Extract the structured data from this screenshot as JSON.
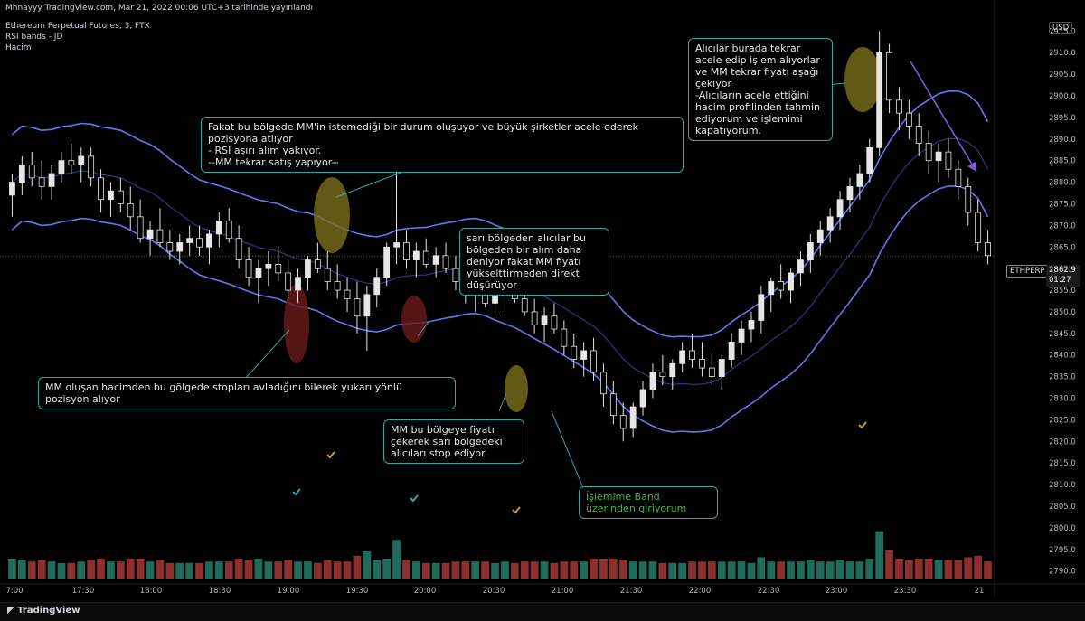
{
  "header": {
    "publish_line": "Mhnayyy TradingView.com, Mar 21, 2022 00:06 UTC+3 tarihinde yayınlandı",
    "symbol_line": "Ethereum Perpetual Futures, 3, FTX",
    "indicator_1": "RSI bands - JD",
    "indicator_2": "Hacim"
  },
  "currency_badge": "USD",
  "price_tag": {
    "symbol": "ETHPERP",
    "price": "2862.9",
    "countdown": "01:27"
  },
  "footer": {
    "logo_text": "TradingView"
  },
  "annotations": [
    {
      "id": "note-top-center",
      "text": "Fakat bu bölgede MM'in istemediği bir durum oluşuyor ve büyük şirketler acele ederek pozisyona atlıyor\n- RSI aşırı alım yakıyor.\n--MM tekrar satış yapıyor--"
    },
    {
      "id": "note-mid",
      "text": "sarı bölgeden alıcılar bu bölgeden bir alım daha deniyor fakat MM fiyatı yükselttirmeden direkt düşürüyor"
    },
    {
      "id": "note-left-bottom",
      "text": "MM oluşan hacimden bu gölgede stopları avladığını bilerek yukarı yönlü pozisyon alıyor"
    },
    {
      "id": "note-stop",
      "text": "MM bu bölgeye fiyatı çekerek sarı bölgedeki alıcıları stop ediyor"
    },
    {
      "id": "note-band",
      "text": "İşlemime Band üzerinden giriyorum"
    },
    {
      "id": "note-top-right",
      "text": "Alıcılar burada tekrar acele edip işlem alıyorlar ve MM tekrar fiyatı aşağı çekiyor\n-Alıcıların acele ettiğini hacim profilinden tahmin ediyorum ve işlemimi kapatıyorum."
    }
  ],
  "colors": {
    "background": "#000000",
    "candle": "#e6e6e6",
    "band": "#5b7cf0",
    "mid_band": "#2a3a7a",
    "vol_up": "#1f6b5c",
    "vol_down": "#8e2f2f",
    "highlight_yellow": "#7a6f1c",
    "highlight_red": "#6b1a1a",
    "note_border": "#2fa7a7",
    "price_line": "#c0392b",
    "arrow_purple": "#7b5cd6"
  },
  "chart_data": {
    "type": "candlestick",
    "instrument": "Ethereum Perpetual Futures",
    "timeframe": "3",
    "exchange": "FTX",
    "x_tick_labels": [
      "7:00",
      "17:30",
      "18:00",
      "18:30",
      "19:00",
      "19:30",
      "20:00",
      "20:30",
      "21:00",
      "21:30",
      "22:00",
      "22:30",
      "23:00",
      "23:30",
      "21"
    ],
    "y_tick_labels": [
      2790,
      2795,
      2800,
      2805,
      2810,
      2815,
      2820,
      2825,
      2830,
      2835,
      2840,
      2845,
      2850,
      2855,
      2860,
      2865,
      2870,
      2875,
      2880,
      2885,
      2890,
      2895,
      2900,
      2905,
      2910,
      2915
    ],
    "ylim": [
      2787,
      2918
    ],
    "last_price": 2862.9,
    "candles_ohlc": [
      [
        2877,
        2882,
        2872,
        2880
      ],
      [
        2880,
        2886,
        2877,
        2884
      ],
      [
        2884,
        2887,
        2879,
        2881
      ],
      [
        2881,
        2885,
        2876,
        2879
      ],
      [
        2879,
        2884,
        2876,
        2882
      ],
      [
        2882,
        2887,
        2880,
        2885
      ],
      [
        2885,
        2889,
        2882,
        2884
      ],
      [
        2884,
        2888,
        2880,
        2886
      ],
      [
        2886,
        2888,
        2879,
        2881
      ],
      [
        2881,
        2883,
        2873,
        2876
      ],
      [
        2876,
        2880,
        2872,
        2878
      ],
      [
        2878,
        2881,
        2873,
        2875
      ],
      [
        2875,
        2879,
        2869,
        2872
      ],
      [
        2872,
        2876,
        2866,
        2867
      ],
      [
        2867,
        2871,
        2863,
        2869
      ],
      [
        2869,
        2874,
        2865,
        2866
      ],
      [
        2866,
        2869,
        2862,
        2864
      ],
      [
        2864,
        2868,
        2861,
        2866
      ],
      [
        2866,
        2870,
        2863,
        2867
      ],
      [
        2867,
        2870,
        2863,
        2865
      ],
      [
        2865,
        2869,
        2861,
        2868
      ],
      [
        2868,
        2873,
        2865,
        2871
      ],
      [
        2871,
        2874,
        2866,
        2867
      ],
      [
        2867,
        2870,
        2860,
        2862
      ],
      [
        2862,
        2865,
        2856,
        2858
      ],
      [
        2858,
        2862,
        2852,
        2860
      ],
      [
        2860,
        2864,
        2856,
        2861
      ],
      [
        2861,
        2865,
        2857,
        2859
      ],
      [
        2859,
        2862,
        2853,
        2855
      ],
      [
        2855,
        2860,
        2852,
        2858
      ],
      [
        2858,
        2863,
        2855,
        2862
      ],
      [
        2862,
        2866,
        2859,
        2860
      ],
      [
        2860,
        2864,
        2855,
        2857
      ],
      [
        2857,
        2861,
        2853,
        2855
      ],
      [
        2855,
        2858,
        2850,
        2853
      ],
      [
        2853,
        2857,
        2845,
        2849
      ],
      [
        2849,
        2856,
        2841,
        2854
      ],
      [
        2854,
        2860,
        2851,
        2858
      ],
      [
        2858,
        2866,
        2856,
        2865
      ],
      [
        2865,
        2884,
        2861,
        2866
      ],
      [
        2866,
        2869,
        2860,
        2862
      ],
      [
        2862,
        2866,
        2858,
        2864
      ],
      [
        2864,
        2867,
        2860,
        2861
      ],
      [
        2861,
        2865,
        2858,
        2863
      ],
      [
        2863,
        2866,
        2859,
        2860
      ],
      [
        2860,
        2863,
        2855,
        2857
      ],
      [
        2857,
        2860,
        2852,
        2855
      ],
      [
        2855,
        2858,
        2850,
        2856
      ],
      [
        2856,
        2859,
        2851,
        2852
      ],
      [
        2852,
        2856,
        2849,
        2854
      ],
      [
        2854,
        2858,
        2850,
        2856
      ],
      [
        2856,
        2859,
        2852,
        2853
      ],
      [
        2853,
        2857,
        2849,
        2850
      ],
      [
        2850,
        2853,
        2845,
        2847
      ],
      [
        2847,
        2851,
        2843,
        2849
      ],
      [
        2849,
        2852,
        2845,
        2846
      ],
      [
        2846,
        2848,
        2840,
        2842
      ],
      [
        2842,
        2845,
        2837,
        2839
      ],
      [
        2839,
        2843,
        2835,
        2841
      ],
      [
        2841,
        2844,
        2834,
        2836
      ],
      [
        2836,
        2838,
        2828,
        2831
      ],
      [
        2831,
        2834,
        2824,
        2826
      ],
      [
        2826,
        2829,
        2820,
        2823
      ],
      [
        2823,
        2829,
        2821,
        2828
      ],
      [
        2828,
        2834,
        2826,
        2832
      ],
      [
        2832,
        2838,
        2830,
        2836
      ],
      [
        2836,
        2840,
        2833,
        2835
      ],
      [
        2835,
        2839,
        2832,
        2838
      ],
      [
        2838,
        2843,
        2836,
        2841
      ],
      [
        2841,
        2845,
        2837,
        2839
      ],
      [
        2839,
        2843,
        2835,
        2837
      ],
      [
        2837,
        2841,
        2833,
        2835
      ],
      [
        2835,
        2840,
        2832,
        2839
      ],
      [
        2839,
        2845,
        2837,
        2843
      ],
      [
        2843,
        2848,
        2840,
        2846
      ],
      [
        2846,
        2850,
        2843,
        2848
      ],
      [
        2848,
        2856,
        2845,
        2854
      ],
      [
        2854,
        2858,
        2850,
        2857
      ],
      [
        2857,
        2861,
        2853,
        2855
      ],
      [
        2855,
        2860,
        2852,
        2859
      ],
      [
        2859,
        2864,
        2856,
        2862
      ],
      [
        2862,
        2868,
        2859,
        2866
      ],
      [
        2866,
        2871,
        2863,
        2869
      ],
      [
        2869,
        2874,
        2866,
        2872
      ],
      [
        2872,
        2878,
        2869,
        2876
      ],
      [
        2876,
        2881,
        2873,
        2879
      ],
      [
        2879,
        2884,
        2876,
        2882
      ],
      [
        2882,
        2890,
        2880,
        2888
      ],
      [
        2888,
        2915,
        2886,
        2910
      ],
      [
        2910,
        2912,
        2896,
        2899
      ],
      [
        2899,
        2902,
        2892,
        2896
      ],
      [
        2896,
        2899,
        2890,
        2893
      ],
      [
        2893,
        2896,
        2886,
        2889
      ],
      [
        2889,
        2892,
        2882,
        2885
      ],
      [
        2885,
        2889,
        2880,
        2887
      ],
      [
        2887,
        2890,
        2881,
        2883
      ],
      [
        2883,
        2885,
        2876,
        2879
      ],
      [
        2879,
        2881,
        2870,
        2873
      ],
      [
        2873,
        2876,
        2864,
        2866
      ],
      [
        2866,
        2869,
        2861,
        2863
      ]
    ]
  }
}
